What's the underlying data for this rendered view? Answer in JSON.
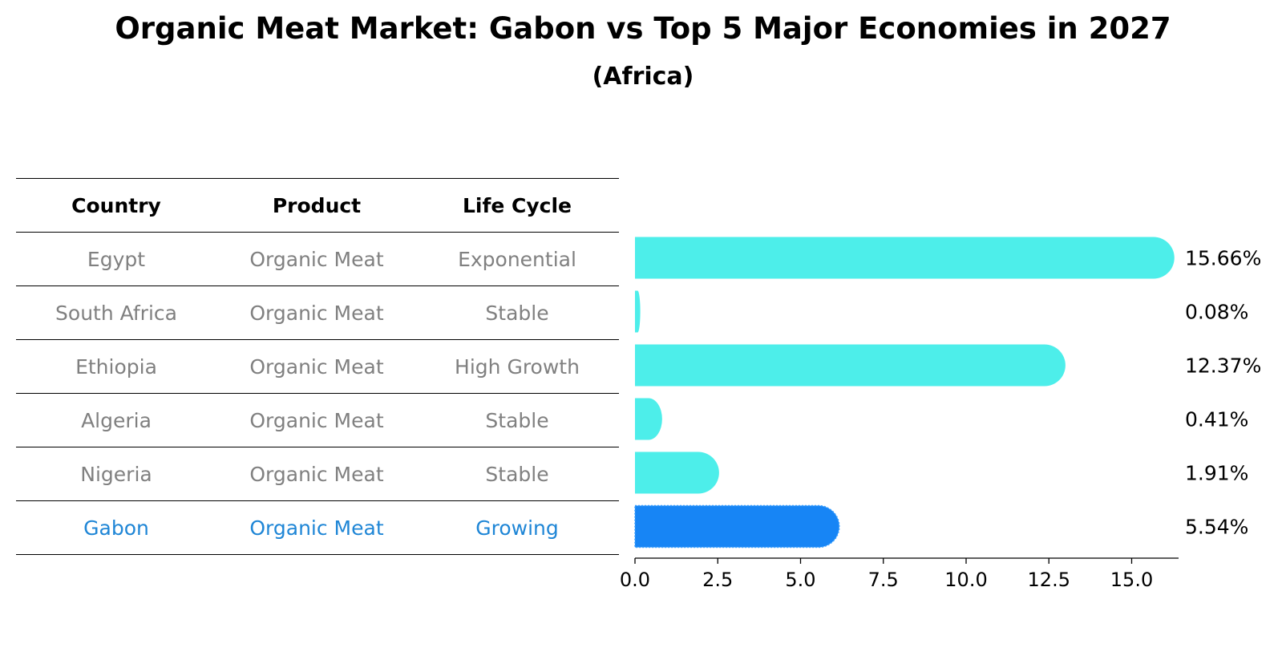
{
  "title": "Organic Meat Market: Gabon vs Top 5 Major Economies in 2027",
  "subtitle": "(Africa)",
  "table": {
    "headers": [
      "Country",
      "Product",
      "Life Cycle"
    ],
    "rows": [
      {
        "country": "Egypt",
        "product": "Organic Meat",
        "life_cycle": "Exponential",
        "highlight": false
      },
      {
        "country": "South Africa",
        "product": "Organic Meat",
        "life_cycle": "Stable",
        "highlight": false
      },
      {
        "country": "Ethiopia",
        "product": "Organic Meat",
        "life_cycle": "High Growth",
        "highlight": false
      },
      {
        "country": "Algeria",
        "product": "Organic Meat",
        "life_cycle": "Stable",
        "highlight": false
      },
      {
        "country": "Nigeria",
        "product": "Organic Meat",
        "life_cycle": "Stable",
        "highlight": false
      },
      {
        "country": "Gabon",
        "product": "Organic Meat",
        "life_cycle": "Growing",
        "highlight": true
      }
    ]
  },
  "colors": {
    "bar": "#4DEEEA",
    "highlight_bar": "#1785F5",
    "highlight_text": "#1F86D6",
    "text_muted": "#808080",
    "text": "#000000"
  },
  "chart_data": {
    "type": "bar",
    "orientation": "horizontal",
    "categories": [
      "Egypt",
      "South Africa",
      "Ethiopia",
      "Algeria",
      "Nigeria",
      "Gabon"
    ],
    "values": [
      15.66,
      0.08,
      12.37,
      0.41,
      1.91,
      5.54
    ],
    "value_labels": [
      "15.66%",
      "0.08%",
      "12.37%",
      "0.41%",
      "1.91%",
      "5.54%"
    ],
    "highlight": "Gabon",
    "xlim": [
      0,
      16.5
    ],
    "xticks": [
      0.0,
      2.5,
      5.0,
      7.5,
      10.0,
      12.5,
      15.0
    ],
    "xtick_labels": [
      "0.0",
      "2.5",
      "5.0",
      "7.5",
      "10.0",
      "12.5",
      "15.0"
    ],
    "title": "Organic Meat Market: Gabon vs Top 5 Major Economies in 2027",
    "subtitle": "(Africa)",
    "xlabel": "",
    "ylabel": "",
    "grid": false
  }
}
